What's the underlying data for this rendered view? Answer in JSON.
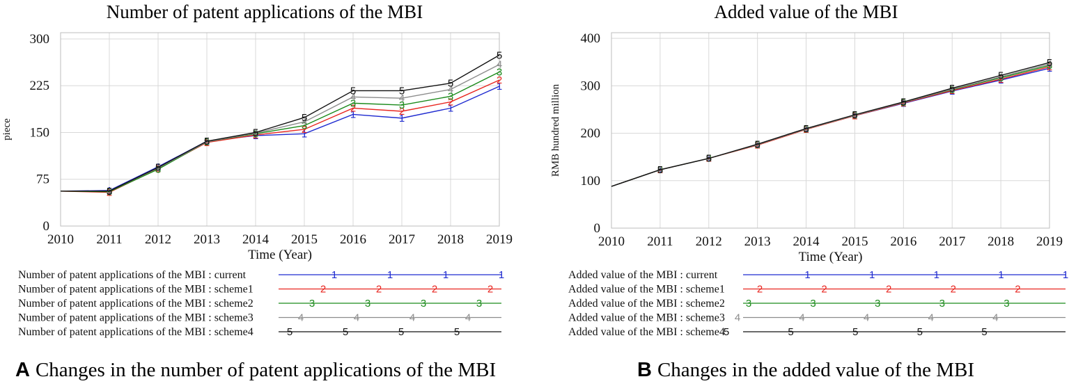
{
  "chart_data": [
    {
      "id": "a",
      "type": "line",
      "title": "Number of patent applications of the MBI",
      "xlabel": "Time (Year)",
      "ylabel": "piece",
      "x": [
        2010,
        2011,
        2012,
        2013,
        2014,
        2015,
        2016,
        2017,
        2018,
        2019
      ],
      "xlim": [
        2010,
        2019
      ],
      "ylim": [
        0,
        310
      ],
      "yticks": [
        0,
        75,
        150,
        225,
        300
      ],
      "grid": true,
      "series": [
        {
          "name": "Number of patent applications of the MBI : current",
          "marker": "1",
          "color": "#1f2bd0",
          "values": [
            56,
            57,
            95,
            136,
            145,
            148,
            179,
            173,
            189,
            224
          ]
        },
        {
          "name": "Number of patent applications of the MBI : scheme1",
          "marker": "2",
          "color": "#e8251f",
          "values": [
            56,
            54,
            92,
            134,
            146,
            155,
            189,
            184,
            199,
            234
          ]
        },
        {
          "name": "Number of patent applications of the MBI : scheme2",
          "marker": "3",
          "color": "#1a8a1a",
          "values": [
            56,
            55,
            91,
            135,
            148,
            161,
            197,
            194,
            208,
            247
          ]
        },
        {
          "name": "Number of patent applications of the MBI : scheme3",
          "marker": "4",
          "color": "#8c8c8c",
          "values": [
            56,
            56,
            93,
            135,
            149,
            167,
            207,
            205,
            219,
            259
          ]
        },
        {
          "name": "Number of patent applications of the MBI : scheme4",
          "marker": "5",
          "color": "#111111",
          "values": [
            56,
            56,
            94,
            136,
            150,
            174,
            217,
            217,
            229,
            274
          ]
        }
      ]
    },
    {
      "id": "b",
      "type": "line",
      "title": "Added value of the MBI",
      "xlabel": "Time (Year)",
      "ylabel": "RMB hundred million",
      "x": [
        2010,
        2011,
        2012,
        2013,
        2014,
        2015,
        2016,
        2017,
        2018,
        2019
      ],
      "xlim": [
        2010,
        2019
      ],
      "ylim": [
        0,
        412
      ],
      "yticks": [
        0,
        100,
        200,
        300,
        400
      ],
      "grid": true,
      "series": [
        {
          "name": "Added value of the MBI : current",
          "marker": "1",
          "color": "#1f2bd0",
          "values": [
            88,
            123,
            147,
            176,
            209,
            237,
            263,
            289,
            312,
            337
          ]
        },
        {
          "name": "Added value of the MBI : scheme1",
          "marker": "2",
          "color": "#e8251f",
          "values": [
            88,
            123,
            147,
            175,
            208,
            237,
            264,
            290,
            314,
            340
          ]
        },
        {
          "name": "Added value of the MBI : scheme2",
          "marker": "3",
          "color": "#1a8a1a",
          "values": [
            88,
            123,
            147,
            176,
            209,
            238,
            265,
            292,
            317,
            343
          ]
        },
        {
          "name": "Added value of the MBI : scheme3",
          "marker": "4",
          "color": "#8c8c8c",
          "values": [
            88,
            123,
            147,
            176,
            209,
            238,
            265,
            293,
            319,
            346
          ]
        },
        {
          "name": "Added value of the MBI : scheme4",
          "marker": "5",
          "color": "#111111",
          "values": [
            88,
            123,
            147,
            177,
            210,
            239,
            266,
            295,
            322,
            349
          ]
        }
      ]
    }
  ],
  "captions": {
    "a": {
      "tag": "A",
      "text": "Changes in the number of patent applications of the MBI"
    },
    "b": {
      "tag": "B",
      "text": "Changes in the added value of the MBI"
    }
  }
}
